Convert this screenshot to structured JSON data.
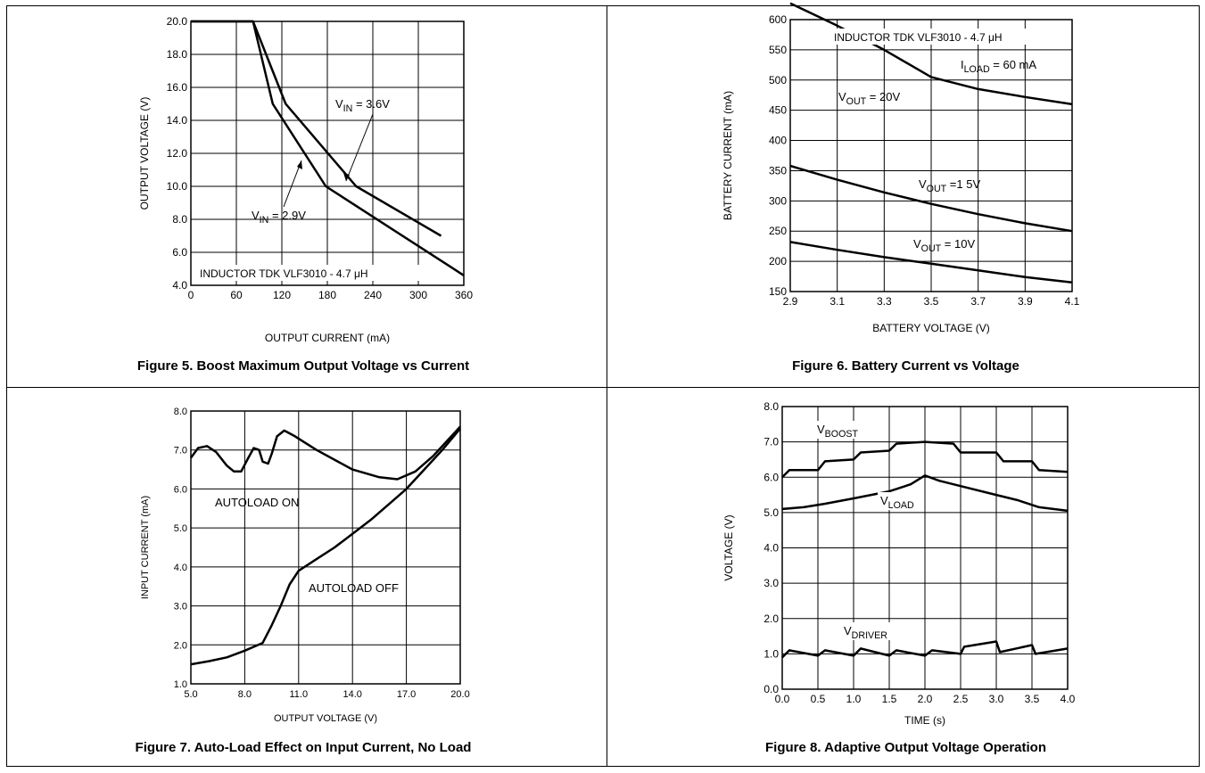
{
  "chart_data": [
    {
      "type": "line",
      "caption": "Figure 5. Boost Maximum Output Voltage vs Current",
      "xlabel": "OUTPUT CURRENT (mA)",
      "ylabel": "OUTPUT VOLTAGE (V)",
      "xlim": [
        0,
        360
      ],
      "ylim": [
        4.0,
        20.0
      ],
      "x_ticks": [
        "0",
        "60",
        "120",
        "180",
        "240",
        "300",
        "360"
      ],
      "y_ticks": [
        "4.0",
        "6.0",
        "8.0",
        "10.0",
        "12.0",
        "14.0",
        "16.0",
        "18.0",
        "20.0"
      ],
      "grid": true,
      "series": [
        {
          "name": "V_IN = 3.6V",
          "points": [
            [
              0,
              20.0
            ],
            [
              82,
              20.0
            ],
            [
              125,
              15.0
            ],
            [
              218,
              10.0
            ],
            [
              330,
              7.0
            ]
          ]
        },
        {
          "name": "V_IN = 2.9V",
          "points": [
            [
              0,
              20.0
            ],
            [
              82,
              20.0
            ],
            [
              108,
              15.0
            ],
            [
              178,
              10.0
            ],
            [
              360,
              4.6
            ]
          ]
        }
      ],
      "annotations": {
        "vin_36": {
          "main": "V",
          "sub": "IN",
          "rest": " = 3.6V"
        },
        "vin_29": {
          "main": "V",
          "sub": "IN",
          "rest": " = 2.9V"
        },
        "inductor": "INDUCTOR TDK VLF3010 - 4.7 μH"
      }
    },
    {
      "type": "line",
      "caption": "Figure 6.  Battery Current vs Voltage",
      "xlabel": "BATTERY VOLTAGE (V)",
      "ylabel": "BATTERY CURRENT (mA)",
      "xlim": [
        2.9,
        4.1
      ],
      "ylim": [
        150,
        600
      ],
      "x_ticks": [
        "2.9",
        "3.1",
        "3.3",
        "3.5",
        "3.7",
        "3.9",
        "4.1"
      ],
      "y_ticks": [
        "150",
        "200",
        "250",
        "300",
        "350",
        "400",
        "450",
        "500",
        "550",
        "600"
      ],
      "grid": true,
      "series": [
        {
          "name": "V_OUT = 20V",
          "points": [
            [
              2.9,
              627
            ],
            [
              3.1,
              590
            ],
            [
              3.3,
              550
            ],
            [
              3.5,
              505
            ],
            [
              3.7,
              485
            ],
            [
              3.9,
              472
            ],
            [
              4.1,
              460
            ]
          ]
        },
        {
          "name": "V_OUT = 15V",
          "points": [
            [
              2.9,
              358
            ],
            [
              3.1,
              335
            ],
            [
              3.3,
              314
            ],
            [
              3.5,
              295
            ],
            [
              3.7,
              278
            ],
            [
              3.9,
              263
            ],
            [
              4.1,
              250
            ]
          ]
        },
        {
          "name": "V_OUT = 10V",
          "points": [
            [
              2.9,
              232
            ],
            [
              3.1,
              219
            ],
            [
              3.3,
              207
            ],
            [
              3.5,
              196
            ],
            [
              3.7,
              185
            ],
            [
              3.9,
              174
            ],
            [
              4.1,
              165
            ]
          ]
        }
      ],
      "annotations": {
        "inductor": "INDUCTOR TDK VLF3010 - 4.7 μH",
        "iload": {
          "main": "I",
          "sub": "LOAD",
          "rest": " = 60 mA"
        },
        "vout20": {
          "main": "V",
          "sub": "OUT",
          "rest": " = 20V"
        },
        "vout15": {
          "main": "V",
          "sub": "OUT",
          "rest": " =1 5V"
        },
        "vout10": {
          "main": "V",
          "sub": "OUT",
          "rest": " = 10V"
        }
      }
    },
    {
      "type": "line",
      "caption": "Figure 7. Auto-Load Effect on Input Current, No Load",
      "xlabel": "OUTPUT VOLTAGE (V)",
      "ylabel": "INPUT CURRENT (mA)",
      "xlim": [
        5.0,
        20.0
      ],
      "ylim": [
        1.0,
        8.0
      ],
      "x_ticks": [
        "5.0",
        "8.0",
        "11.0",
        "14.0",
        "17.0",
        "20.0"
      ],
      "y_ticks": [
        "1.0",
        "2.0",
        "3.0",
        "4.0",
        "5.0",
        "6.0",
        "7.0",
        "8.0"
      ],
      "grid": true,
      "series": [
        {
          "name": "AUTOLOAD ON",
          "points": [
            [
              5.0,
              6.8
            ],
            [
              5.4,
              7.05
            ],
            [
              5.9,
              7.1
            ],
            [
              6.4,
              6.95
            ],
            [
              7.0,
              6.6
            ],
            [
              7.4,
              6.45
            ],
            [
              7.8,
              6.45
            ],
            [
              8.2,
              6.8
            ],
            [
              8.5,
              7.05
            ],
            [
              8.8,
              7.0
            ],
            [
              9.0,
              6.7
            ],
            [
              9.3,
              6.65
            ],
            [
              9.5,
              6.9
            ],
            [
              9.8,
              7.35
            ],
            [
              10.2,
              7.5
            ],
            [
              10.8,
              7.35
            ],
            [
              12.0,
              7.0
            ],
            [
              14.0,
              6.5
            ],
            [
              15.5,
              6.3
            ],
            [
              16.5,
              6.25
            ],
            [
              17.5,
              6.45
            ],
            [
              18.5,
              6.85
            ],
            [
              20.0,
              7.6
            ]
          ]
        },
        {
          "name": "AUTOLOAD OFF",
          "points": [
            [
              5.0,
              1.5
            ],
            [
              6.0,
              1.58
            ],
            [
              7.0,
              1.68
            ],
            [
              8.0,
              1.85
            ],
            [
              9.0,
              2.05
            ],
            [
              9.5,
              2.5
            ],
            [
              10.0,
              3.0
            ],
            [
              10.5,
              3.55
            ],
            [
              11.0,
              3.9
            ],
            [
              12.0,
              4.2
            ],
            [
              13.0,
              4.5
            ],
            [
              14.0,
              4.85
            ],
            [
              15.0,
              5.2
            ],
            [
              16.0,
              5.6
            ],
            [
              17.0,
              6.0
            ],
            [
              18.0,
              6.5
            ],
            [
              19.0,
              7.0
            ],
            [
              20.0,
              7.55
            ]
          ]
        }
      ]
    },
    {
      "type": "line",
      "caption": "Figure 8. Adaptive Output Voltage Operation",
      "xlabel": "TIME (s)",
      "ylabel": "VOLTAGE (V)",
      "xlim": [
        0.0,
        4.0
      ],
      "ylim": [
        0.0,
        8.0
      ],
      "x_ticks": [
        "0.0",
        "0.5",
        "1.0",
        "1.5",
        "2.0",
        "2.5",
        "3.0",
        "3.5",
        "4.0"
      ],
      "y_ticks": [
        "0.0",
        "1.0",
        "2.0",
        "3.0",
        "4.0",
        "5.0",
        "6.0",
        "7.0",
        "8.0"
      ],
      "grid": true,
      "series": [
        {
          "name": "V_BOOST",
          "points": [
            [
              0.0,
              6.0
            ],
            [
              0.1,
              6.2
            ],
            [
              0.5,
              6.2
            ],
            [
              0.6,
              6.45
            ],
            [
              1.0,
              6.5
            ],
            [
              1.1,
              6.7
            ],
            [
              1.5,
              6.75
            ],
            [
              1.6,
              6.95
            ],
            [
              2.0,
              7.0
            ],
            [
              2.4,
              6.95
            ],
            [
              2.5,
              6.7
            ],
            [
              3.0,
              6.7
            ],
            [
              3.1,
              6.45
            ],
            [
              3.5,
              6.45
            ],
            [
              3.6,
              6.2
            ],
            [
              4.0,
              6.15
            ]
          ]
        },
        {
          "name": "V_LOAD",
          "points": [
            [
              0.0,
              5.1
            ],
            [
              0.3,
              5.15
            ],
            [
              0.6,
              5.25
            ],
            [
              1.0,
              5.4
            ],
            [
              1.5,
              5.6
            ],
            [
              1.8,
              5.8
            ],
            [
              2.0,
              6.05
            ],
            [
              2.2,
              5.9
            ],
            [
              2.5,
              5.75
            ],
            [
              3.0,
              5.5
            ],
            [
              3.3,
              5.35
            ],
            [
              3.6,
              5.15
            ],
            [
              4.0,
              5.05
            ]
          ]
        },
        {
          "name": "V_DRIVER",
          "points": [
            [
              0.0,
              0.9
            ],
            [
              0.1,
              1.1
            ],
            [
              0.5,
              0.95
            ],
            [
              0.6,
              1.1
            ],
            [
              1.0,
              0.95
            ],
            [
              1.1,
              1.15
            ],
            [
              1.5,
              0.95
            ],
            [
              1.6,
              1.1
            ],
            [
              2.0,
              0.95
            ],
            [
              2.1,
              1.1
            ],
            [
              2.5,
              1.0
            ],
            [
              2.55,
              1.2
            ],
            [
              3.0,
              1.35
            ],
            [
              3.05,
              1.05
            ],
            [
              3.5,
              1.25
            ],
            [
              3.55,
              1.0
            ],
            [
              4.0,
              1.15
            ]
          ]
        }
      ],
      "annotations": {
        "vboost": {
          "main": "V",
          "sub": "BOOST",
          "rest": ""
        },
        "vload": {
          "main": "V",
          "sub": "LOAD",
          "rest": ""
        },
        "vdriver": {
          "main": "V",
          "sub": "DRIVER",
          "rest": ""
        }
      }
    }
  ]
}
